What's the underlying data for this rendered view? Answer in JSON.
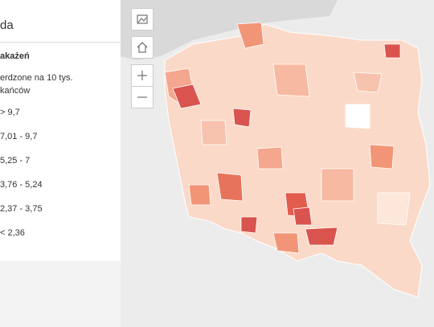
{
  "legend": {
    "title": "da",
    "layer": "akażeń",
    "description": [
      "erdzone na 10 tys.",
      "kańców"
    ],
    "items": [
      "> 9,7",
      "7,01 - 9,7",
      "5,25 - 7",
      "3,76 - 5,24",
      "2,37 - 3,75",
      "< 2,36"
    ]
  }
}
